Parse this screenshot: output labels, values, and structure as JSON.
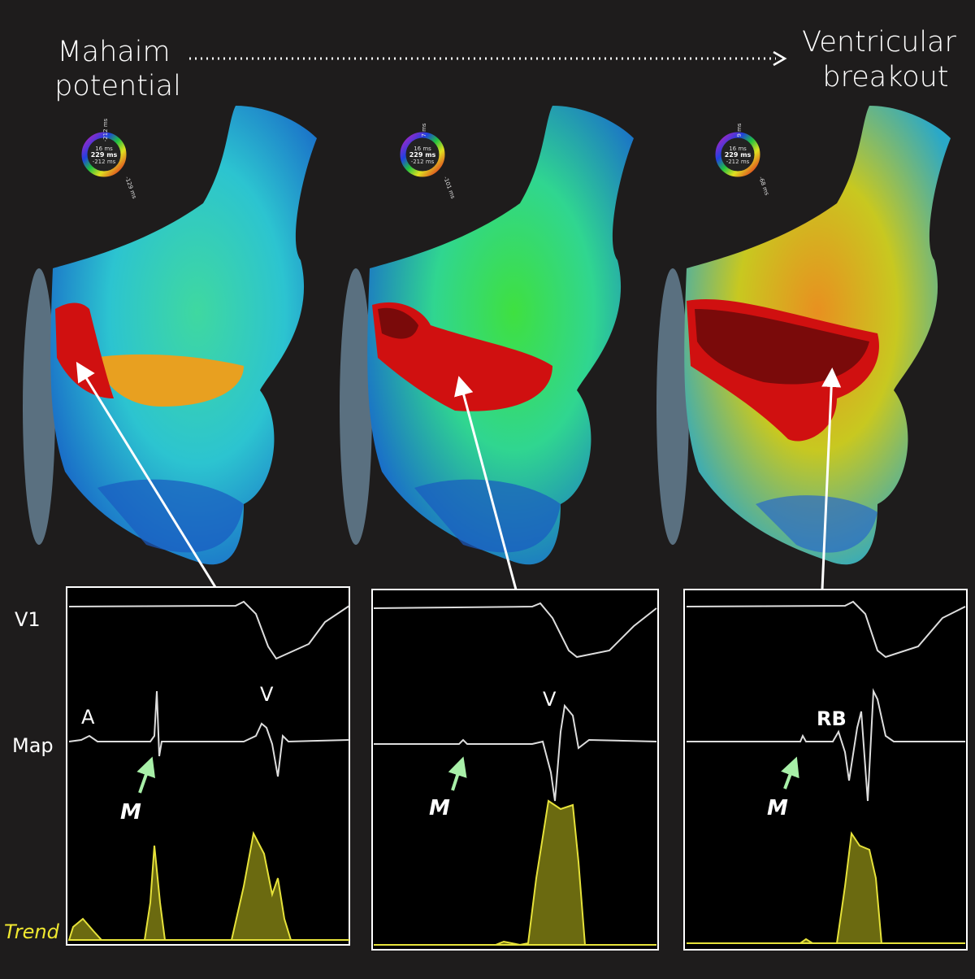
{
  "header": {
    "left_label": [
      "Mahaim",
      "potential"
    ],
    "right_label": [
      "Ventricular",
      "breakout"
    ]
  },
  "maps": [
    {
      "wheel_labels": [
        "-212 ms",
        "16 ms",
        "229 ms",
        "-212 ms",
        "-129 ms"
      ]
    },
    {
      "wheel_labels": [
        "7 ms",
        "16 ms",
        "229 ms",
        "-212 ms",
        "-101 ms"
      ]
    },
    {
      "wheel_labels": [
        "9 ms",
        "16 ms",
        "229 ms",
        "-212 ms",
        "-68 ms"
      ]
    }
  ],
  "row_labels": [
    "V1",
    "Map",
    "Trend"
  ],
  "panels": [
    {
      "annotations": [
        "A",
        "V"
      ],
      "marker": "M"
    },
    {
      "annotations": [
        "V"
      ],
      "marker": "M"
    },
    {
      "annotations": [
        "RB"
      ],
      "marker": "M"
    }
  ]
}
